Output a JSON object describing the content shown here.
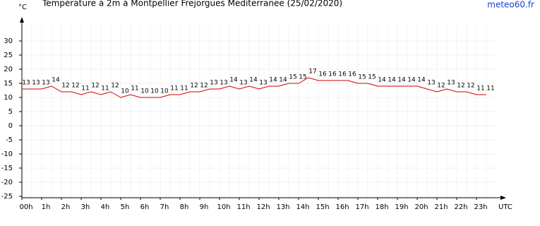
{
  "chart_data": {
    "type": "line",
    "title": "Température à 2m à Montpellier Frejorgues Mediterranee (25/02/2020)",
    "source": "meteo60.fr",
    "y_label": "°C",
    "x_label": "UTC",
    "categories": [
      "00h",
      null,
      "1h",
      null,
      "2h",
      null,
      "3h",
      null,
      "4h",
      null,
      "5h",
      null,
      "6h",
      null,
      "7h",
      null,
      "8h",
      null,
      "9h",
      null,
      "10h",
      null,
      "11h",
      null,
      "12h",
      null,
      "13h",
      null,
      "14h",
      null,
      "15h",
      null,
      "16h",
      null,
      "17h",
      null,
      "18h",
      null,
      "19h",
      null,
      "20h",
      null,
      "21h",
      null,
      "22h",
      null,
      "23h",
      null
    ],
    "series": [
      {
        "name": "Température",
        "color": "#cc0000",
        "values": [
          13,
          13,
          13,
          14,
          12,
          12,
          11,
          12,
          11,
          12,
          10,
          11,
          10,
          10,
          10,
          11,
          11,
          12,
          12,
          13,
          13,
          14,
          13,
          14,
          13,
          14,
          14,
          15,
          15,
          17,
          16,
          16,
          16,
          16,
          15,
          15,
          14,
          14,
          14,
          14,
          14,
          13,
          12,
          13,
          12,
          12,
          11,
          11
        ]
      }
    ],
    "ylim": [
      -25.5,
      37
    ],
    "yticks": [
      -25,
      -20,
      -15,
      -10,
      -5,
      0,
      5,
      10,
      15,
      20,
      25,
      30
    ],
    "grid": true
  }
}
